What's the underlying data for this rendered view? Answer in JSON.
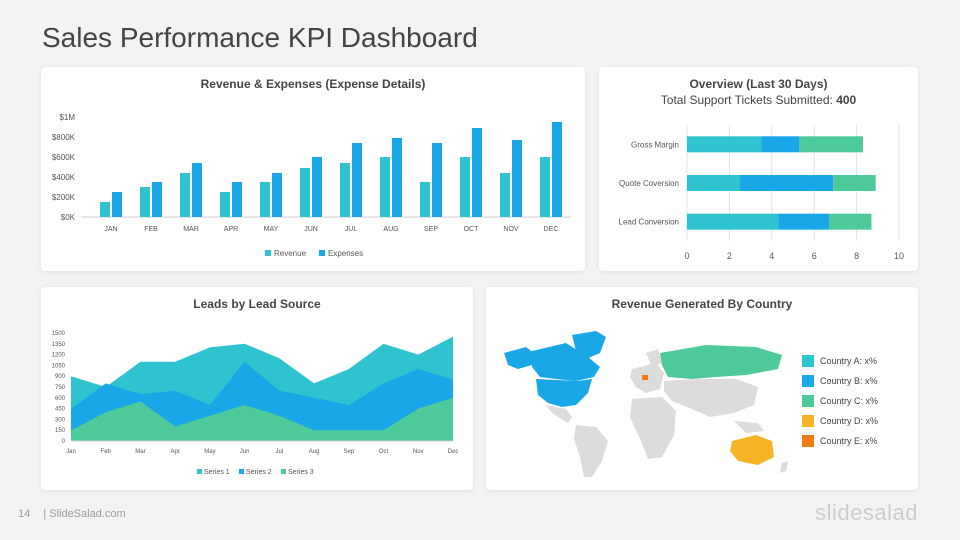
{
  "page": {
    "title": "Sales Performance KPI Dashboard",
    "page_number": "14",
    "footer_text": "| SlideSalad.com",
    "brand": "slidesalad"
  },
  "colors": {
    "teal": "#2ec3ce",
    "blue": "#1aa7e8",
    "green": "#4dc99a",
    "yellow": "#f5b326",
    "orange": "#f07b12",
    "map_gray": "#dcdcdc"
  },
  "chart_data": [
    {
      "type": "bar",
      "title": "Revenue & Expenses (Expense Details)",
      "categories": [
        "JAN",
        "FEB",
        "MAR",
        "APR",
        "MAY",
        "JUN",
        "JUL",
        "AUG",
        "SEP",
        "OCT",
        "NOV",
        "DEC"
      ],
      "series": [
        {
          "name": "Revenue",
          "color": "#2ec3ce",
          "values": [
            150000,
            300000,
            440000,
            250000,
            350000,
            490000,
            540000,
            600000,
            350000,
            600000,
            440000,
            600000
          ]
        },
        {
          "name": "Expenses",
          "color": "#1aa7e8",
          "values": [
            250000,
            350000,
            540000,
            350000,
            440000,
            600000,
            740000,
            790000,
            740000,
            890000,
            770000,
            950000
          ]
        }
      ],
      "y_ticks": [
        "$0K",
        "$200K",
        "$400K",
        "$600K",
        "$800K",
        "$1M"
      ],
      "ylim": [
        0,
        1000000
      ],
      "legend": "bottom"
    },
    {
      "type": "bar",
      "orientation": "horizontal-stacked",
      "title": "Overview (Last 30 Days)",
      "subtitle_label": "Total Support Tickets Submitted:",
      "subtitle_value": "400",
      "categories": [
        "Gross Margin",
        "Quote Coversion",
        "Lead Conversion"
      ],
      "series": [
        {
          "color": "#2ec3ce",
          "values": [
            3.5,
            2.5,
            4.3
          ]
        },
        {
          "color": "#1aa7e8",
          "values": [
            1.8,
            4.4,
            2.4
          ]
        },
        {
          "color": "#4dc99a",
          "values": [
            3.0,
            2.0,
            2.0
          ]
        }
      ],
      "x_ticks": [
        "0",
        "2",
        "4",
        "6",
        "8",
        "10"
      ],
      "xlim": [
        0,
        10
      ],
      "grid": true
    },
    {
      "type": "area",
      "title": "Leads by Lead Source",
      "categories": [
        "Jan",
        "Feb",
        "Mar",
        "Apr",
        "May",
        "Jun",
        "Jul",
        "Aug",
        "Sep",
        "Oct",
        "Nov",
        "Dec"
      ],
      "series": [
        {
          "name": "Series 1",
          "color": "#2ec3ce",
          "values": [
            900,
            750,
            1100,
            1100,
            1300,
            1350,
            1150,
            800,
            1000,
            1350,
            1200,
            1450
          ]
        },
        {
          "name": "Series 2",
          "color": "#1aa7e8",
          "values": [
            450,
            800,
            650,
            700,
            500,
            1100,
            700,
            600,
            500,
            800,
            1000,
            850
          ]
        },
        {
          "name": "Series 3",
          "color": "#4dc99a",
          "values": [
            150,
            400,
            550,
            200,
            350,
            500,
            350,
            150,
            150,
            150,
            450,
            600
          ]
        }
      ],
      "y_ticks": [
        "0",
        "150",
        "300",
        "450",
        "600",
        "750",
        "900",
        "1050",
        "1200",
        "1350",
        "1500"
      ],
      "ylim": [
        0,
        1500
      ],
      "legend": "bottom"
    }
  ],
  "map": {
    "title": "Revenue Generated By Country",
    "legend": [
      {
        "label": "Country A: x%",
        "color": "#2ec3ce"
      },
      {
        "label": "Country B: x%",
        "color": "#1aa7e8"
      },
      {
        "label": "Country C: x%",
        "color": "#4dc99a"
      },
      {
        "label": "Country D: x%",
        "color": "#f5b326"
      },
      {
        "label": "Country E: x%",
        "color": "#f07b12"
      }
    ]
  }
}
